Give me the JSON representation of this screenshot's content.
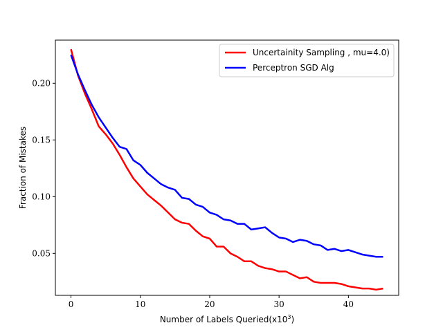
{
  "chart_data": {
    "type": "line",
    "title": "",
    "xlabel": "Number of Labels Queried(x10",
    "xlabel_sup": "3",
    "xlabel_close": ")",
    "ylabel": "Fraction of Mistakes",
    "xlim": [
      -2.25,
      47.25
    ],
    "ylim": [
      0.013,
      0.238
    ],
    "xticks": [
      0,
      10,
      20,
      30,
      40
    ],
    "xtick_labels": [
      "0",
      "10",
      "20",
      "30",
      "40"
    ],
    "yticks": [
      0.05,
      0.1,
      0.15,
      0.2
    ],
    "ytick_labels": [
      "0.05",
      "0.10",
      "0.15",
      "0.20"
    ],
    "legend_position": "top-right",
    "x": [
      0,
      1,
      2,
      3,
      4,
      5,
      6,
      7,
      8,
      9,
      10,
      11,
      12,
      13,
      14,
      15,
      16,
      17,
      18,
      19,
      20,
      21,
      22,
      23,
      24,
      25,
      26,
      27,
      28,
      29,
      30,
      31,
      32,
      33,
      34,
      35,
      36,
      37,
      38,
      39,
      40,
      41,
      42,
      43,
      44,
      45
    ],
    "series": [
      {
        "name": "Uncertainity Sampling , mu=4.0)",
        "color": "#ff0000",
        "values": [
          0.23,
          0.207,
          0.191,
          0.177,
          0.162,
          0.155,
          0.147,
          0.137,
          0.126,
          0.116,
          0.109,
          0.102,
          0.097,
          0.092,
          0.086,
          0.08,
          0.077,
          0.076,
          0.07,
          0.065,
          0.063,
          0.056,
          0.056,
          0.05,
          0.047,
          0.043,
          0.043,
          0.039,
          0.037,
          0.036,
          0.034,
          0.034,
          0.031,
          0.028,
          0.029,
          0.025,
          0.024,
          0.024,
          0.024,
          0.023,
          0.021,
          0.02,
          0.019,
          0.019,
          0.018,
          0.019
        ]
      },
      {
        "name": "Perceptron SGD Alg",
        "color": "#0000ff",
        "values": [
          0.225,
          0.208,
          0.194,
          0.181,
          0.17,
          0.161,
          0.152,
          0.144,
          0.142,
          0.132,
          0.128,
          0.121,
          0.116,
          0.111,
          0.108,
          0.106,
          0.099,
          0.098,
          0.093,
          0.091,
          0.086,
          0.084,
          0.08,
          0.079,
          0.076,
          0.076,
          0.071,
          0.072,
          0.073,
          0.068,
          0.064,
          0.063,
          0.06,
          0.062,
          0.061,
          0.058,
          0.057,
          0.053,
          0.054,
          0.052,
          0.053,
          0.051,
          0.049,
          0.048,
          0.047,
          0.047
        ]
      }
    ]
  }
}
